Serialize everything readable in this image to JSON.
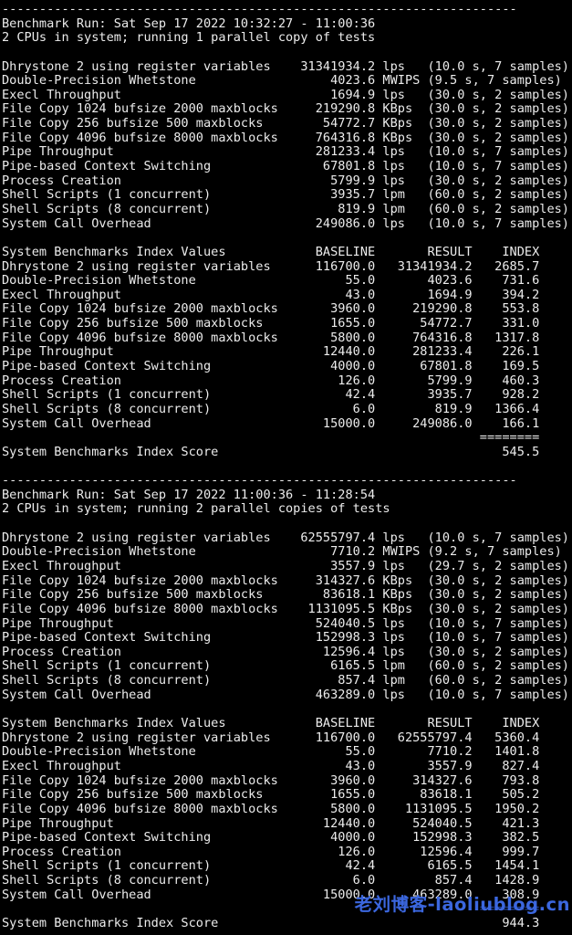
{
  "watermark": {
    "text": "老刘博客-laoliublog.cn",
    "color": "#3b67df",
    "equals_overlap_color": "#24459f"
  },
  "terminal": {
    "foreground": "#ececec",
    "background": "#000000",
    "separator_dashes": 69,
    "equals_ruler": "========",
    "index_header_columns": [
      "BASELINE",
      "RESULT",
      "INDEX"
    ],
    "score_label": "System Benchmarks Index Score",
    "runs": [
      {
        "title": "Benchmark Run: Sat Sep 17 2022 10:32:27 - 11:00:36",
        "system": "2 CPUs in system; running 1 parallel copy of tests",
        "results": [
          {
            "name": "Dhrystone 2 using register variables",
            "value": "31341934.2",
            "unit": "lps",
            "timing": "(10.0 s, 7 samples)"
          },
          {
            "name": "Double-Precision Whetstone",
            "value": "4023.6",
            "unit": "MWIPS",
            "timing": "(9.5 s, 7 samples)"
          },
          {
            "name": "Execl Throughput",
            "value": "1694.9",
            "unit": "lps",
            "timing": "(30.0 s, 2 samples)"
          },
          {
            "name": "File Copy 1024 bufsize 2000 maxblocks",
            "value": "219290.8",
            "unit": "KBps",
            "timing": "(30.0 s, 2 samples)"
          },
          {
            "name": "File Copy 256 bufsize 500 maxblocks",
            "value": "54772.7",
            "unit": "KBps",
            "timing": "(30.0 s, 2 samples)"
          },
          {
            "name": "File Copy 4096 bufsize 8000 maxblocks",
            "value": "764316.8",
            "unit": "KBps",
            "timing": "(30.0 s, 2 samples)"
          },
          {
            "name": "Pipe Throughput",
            "value": "281233.4",
            "unit": "lps",
            "timing": "(10.0 s, 7 samples)"
          },
          {
            "name": "Pipe-based Context Switching",
            "value": "67801.8",
            "unit": "lps",
            "timing": "(10.0 s, 7 samples)"
          },
          {
            "name": "Process Creation",
            "value": "5799.9",
            "unit": "lps",
            "timing": "(30.0 s, 2 samples)"
          },
          {
            "name": "Shell Scripts (1 concurrent)",
            "value": "3935.7",
            "unit": "lpm",
            "timing": "(60.0 s, 2 samples)"
          },
          {
            "name": "Shell Scripts (8 concurrent)",
            "value": "819.9",
            "unit": "lpm",
            "timing": "(60.0 s, 2 samples)"
          },
          {
            "name": "System Call Overhead",
            "value": "249086.0",
            "unit": "lps",
            "timing": "(10.0 s, 7 samples)"
          }
        ],
        "index_values_title": "System Benchmarks Index Values",
        "index_rows": [
          {
            "name": "Dhrystone 2 using register variables",
            "baseline": "116700.0",
            "result": "31341934.2",
            "index": "2685.7"
          },
          {
            "name": "Double-Precision Whetstone",
            "baseline": "55.0",
            "result": "4023.6",
            "index": "731.6"
          },
          {
            "name": "Execl Throughput",
            "baseline": "43.0",
            "result": "1694.9",
            "index": "394.2"
          },
          {
            "name": "File Copy 1024 bufsize 2000 maxblocks",
            "baseline": "3960.0",
            "result": "219290.8",
            "index": "553.8"
          },
          {
            "name": "File Copy 256 bufsize 500 maxblocks",
            "baseline": "1655.0",
            "result": "54772.7",
            "index": "331.0"
          },
          {
            "name": "File Copy 4096 bufsize 8000 maxblocks",
            "baseline": "5800.0",
            "result": "764316.8",
            "index": "1317.8"
          },
          {
            "name": "Pipe Throughput",
            "baseline": "12440.0",
            "result": "281233.4",
            "index": "226.1"
          },
          {
            "name": "Pipe-based Context Switching",
            "baseline": "4000.0",
            "result": "67801.8",
            "index": "169.5"
          },
          {
            "name": "Process Creation",
            "baseline": "126.0",
            "result": "5799.9",
            "index": "460.3"
          },
          {
            "name": "Shell Scripts (1 concurrent)",
            "baseline": "42.4",
            "result": "3935.7",
            "index": "928.2"
          },
          {
            "name": "Shell Scripts (8 concurrent)",
            "baseline": "6.0",
            "result": "819.9",
            "index": "1366.4"
          },
          {
            "name": "System Call Overhead",
            "baseline": "15000.0",
            "result": "249086.0",
            "index": "166.1"
          }
        ],
        "score": "545.5"
      },
      {
        "title": "Benchmark Run: Sat Sep 17 2022 11:00:36 - 11:28:54",
        "system": "2 CPUs in system; running 2 parallel copies of tests",
        "results": [
          {
            "name": "Dhrystone 2 using register variables",
            "value": "62555797.4",
            "unit": "lps",
            "timing": "(10.0 s, 7 samples)"
          },
          {
            "name": "Double-Precision Whetstone",
            "value": "7710.2",
            "unit": "MWIPS",
            "timing": "(9.2 s, 7 samples)"
          },
          {
            "name": "Execl Throughput",
            "value": "3557.9",
            "unit": "lps",
            "timing": "(29.7 s, 2 samples)"
          },
          {
            "name": "File Copy 1024 bufsize 2000 maxblocks",
            "value": "314327.6",
            "unit": "KBps",
            "timing": "(30.0 s, 2 samples)"
          },
          {
            "name": "File Copy 256 bufsize 500 maxblocks",
            "value": "83618.1",
            "unit": "KBps",
            "timing": "(30.0 s, 2 samples)"
          },
          {
            "name": "File Copy 4096 bufsize 8000 maxblocks",
            "value": "1131095.5",
            "unit": "KBps",
            "timing": "(30.0 s, 2 samples)"
          },
          {
            "name": "Pipe Throughput",
            "value": "524040.5",
            "unit": "lps",
            "timing": "(10.0 s, 7 samples)"
          },
          {
            "name": "Pipe-based Context Switching",
            "value": "152998.3",
            "unit": "lps",
            "timing": "(10.0 s, 7 samples)"
          },
          {
            "name": "Process Creation",
            "value": "12596.4",
            "unit": "lps",
            "timing": "(30.0 s, 2 samples)"
          },
          {
            "name": "Shell Scripts (1 concurrent)",
            "value": "6165.5",
            "unit": "lpm",
            "timing": "(60.0 s, 2 samples)"
          },
          {
            "name": "Shell Scripts (8 concurrent)",
            "value": "857.4",
            "unit": "lpm",
            "timing": "(60.0 s, 2 samples)"
          },
          {
            "name": "System Call Overhead",
            "value": "463289.0",
            "unit": "lps",
            "timing": "(10.0 s, 7 samples)"
          }
        ],
        "index_values_title": "System Benchmarks Index Values",
        "index_rows": [
          {
            "name": "Dhrystone 2 using register variables",
            "baseline": "116700.0",
            "result": "62555797.4",
            "index": "5360.4"
          },
          {
            "name": "Double-Precision Whetstone",
            "baseline": "55.0",
            "result": "7710.2",
            "index": "1401.8"
          },
          {
            "name": "Execl Throughput",
            "baseline": "43.0",
            "result": "3557.9",
            "index": "827.4"
          },
          {
            "name": "File Copy 1024 bufsize 2000 maxblocks",
            "baseline": "3960.0",
            "result": "314327.6",
            "index": "793.8"
          },
          {
            "name": "File Copy 256 bufsize 500 maxblocks",
            "baseline": "1655.0",
            "result": "83618.1",
            "index": "505.2"
          },
          {
            "name": "File Copy 4096 bufsize 8000 maxblocks",
            "baseline": "5800.0",
            "result": "1131095.5",
            "index": "1950.2"
          },
          {
            "name": "Pipe Throughput",
            "baseline": "12440.0",
            "result": "524040.5",
            "index": "421.3"
          },
          {
            "name": "Pipe-based Context Switching",
            "baseline": "4000.0",
            "result": "152998.3",
            "index": "382.5"
          },
          {
            "name": "Process Creation",
            "baseline": "126.0",
            "result": "12596.4",
            "index": "999.7"
          },
          {
            "name": "Shell Scripts (1 concurrent)",
            "baseline": "42.4",
            "result": "6165.5",
            "index": "1454.1"
          },
          {
            "name": "Shell Scripts (8 concurrent)",
            "baseline": "6.0",
            "result": "857.4",
            "index": "1428.9"
          },
          {
            "name": "System Call Overhead",
            "baseline": "15000.0",
            "result": "463289.0",
            "index": "308.9"
          }
        ],
        "score": "944.3"
      }
    ]
  }
}
